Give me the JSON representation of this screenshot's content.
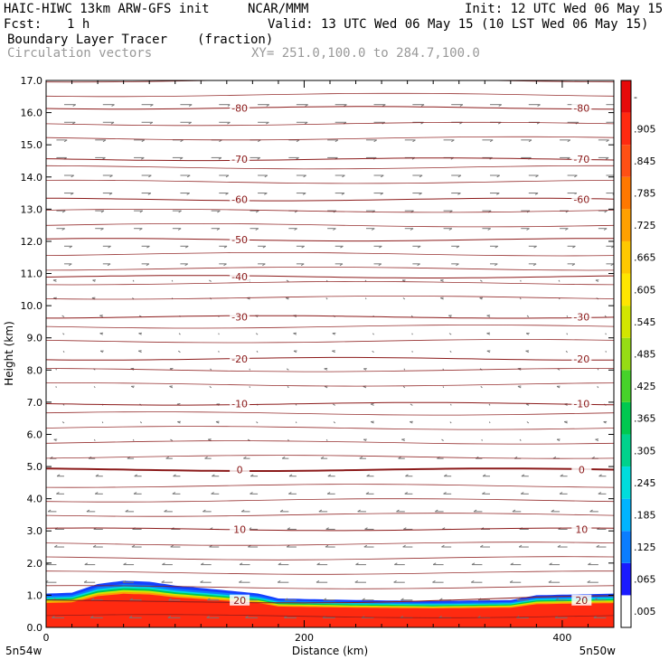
{
  "header": {
    "model": "HAIC-HIWC 13km ARW-GFS init",
    "org": "NCAR/MMM",
    "init": "Init: 12 UTC Wed 06 May 15",
    "fcst_label": "Fcst:",
    "fcst_value": "1 h",
    "valid": "Valid: 13 UTC Wed 06 May 15 (10 LST Wed 06 May 15)",
    "field1_name": "Boundary Layer Tracer",
    "field1_units": "(fraction)",
    "field2_name": "Circulation vectors",
    "cross_section": "XY= 251.0,100.0 to 284.7,100.0"
  },
  "colors": {
    "contour": "#8b1a1a",
    "vector": "#777777",
    "fill_red": "#ff2a10",
    "fill_blue": "#1440ff"
  },
  "chart_data": {
    "type": "heatmap",
    "title": "Boundary Layer Tracer",
    "units": "(fraction)",
    "xlabel": "Distance (km)",
    "ylabel": "Height (km)",
    "xlim": [
      0,
      440
    ],
    "ylim": [
      0,
      17
    ],
    "x_ticks": [
      {
        "value": 0,
        "label": "0"
      },
      {
        "value": 200,
        "label": "200"
      },
      {
        "value": 400,
        "label": "400"
      }
    ],
    "x_endpoints": {
      "left": "5n54w",
      "right": "5n50w"
    },
    "y_ticks": [
      "0.0",
      "1.0",
      "2.0",
      "3.0",
      "4.0",
      "5.0",
      "6.0",
      "7.0",
      "8.0",
      "9.0",
      "10.0",
      "11.0",
      "12.0",
      "13.0",
      "14.0",
      "15.0",
      "16.0",
      "17.0"
    ],
    "temperature_contours": [
      {
        "label": "20",
        "height_km": 0.85,
        "label_x_km": [
          150,
          415
        ]
      },
      {
        "label": "10",
        "height_km": 3.05,
        "label_x_km": [
          150,
          415
        ]
      },
      {
        "label": "0",
        "height_km": 4.9,
        "label_x_km": [
          150,
          415
        ]
      },
      {
        "label": "-10",
        "height_km": 6.95,
        "label_x_km": [
          150,
          415
        ]
      },
      {
        "label": "-20",
        "height_km": 8.35,
        "label_x_km": [
          150,
          415
        ]
      },
      {
        "label": "-30",
        "height_km": 9.65,
        "label_x_km": [
          150,
          415
        ]
      },
      {
        "label": "-40",
        "height_km": 10.9,
        "label_x_km": [
          150
        ]
      },
      {
        "label": "-50",
        "height_km": 12.05,
        "label_x_km": [
          150
        ]
      },
      {
        "label": "-60",
        "height_km": 13.3,
        "label_x_km": [
          150,
          415
        ]
      },
      {
        "label": "-70",
        "height_km": 14.55,
        "label_x_km": [
          150,
          415
        ]
      },
      {
        "label": "-80",
        "height_km": 16.15,
        "label_x_km": [
          150,
          415
        ]
      }
    ],
    "boundary_layer_top_km": [
      {
        "x": 0,
        "top": 1.05
      },
      {
        "x": 20,
        "top": 1.08
      },
      {
        "x": 40,
        "top": 1.35
      },
      {
        "x": 60,
        "top": 1.45
      },
      {
        "x": 80,
        "top": 1.42
      },
      {
        "x": 100,
        "top": 1.3
      },
      {
        "x": 140,
        "top": 1.15
      },
      {
        "x": 165,
        "top": 1.05
      },
      {
        "x": 180,
        "top": 0.9
      },
      {
        "x": 240,
        "top": 0.85
      },
      {
        "x": 300,
        "top": 0.82
      },
      {
        "x": 360,
        "top": 0.85
      },
      {
        "x": 380,
        "top": 1.0
      },
      {
        "x": 440,
        "top": 1.05
      }
    ],
    "colorbar": {
      "labels": [
        ".005",
        ".065",
        ".125",
        ".185",
        ".245",
        ".305",
        ".365",
        ".425",
        ".485",
        ".545",
        ".605",
        ".665",
        ".725",
        ".785",
        ".845",
        ".905",
        "-"
      ],
      "colors": [
        "#ffffff",
        "#1a1aff",
        "#0a7dff",
        "#00b4ff",
        "#00dcdc",
        "#00d28c",
        "#00c850",
        "#46d22a",
        "#96dc14",
        "#d2e600",
        "#ffe600",
        "#ffc800",
        "#ffa000",
        "#ff7800",
        "#ff5014",
        "#ff2a10",
        "#e60a0a"
      ]
    },
    "wind_regime": [
      {
        "from_km": 0,
        "to_km": 5,
        "direction": "east-to-west"
      },
      {
        "from_km": 5,
        "to_km": 11,
        "direction": "weak"
      },
      {
        "from_km": 11,
        "to_km": 17,
        "direction": "west-to-east"
      }
    ]
  }
}
